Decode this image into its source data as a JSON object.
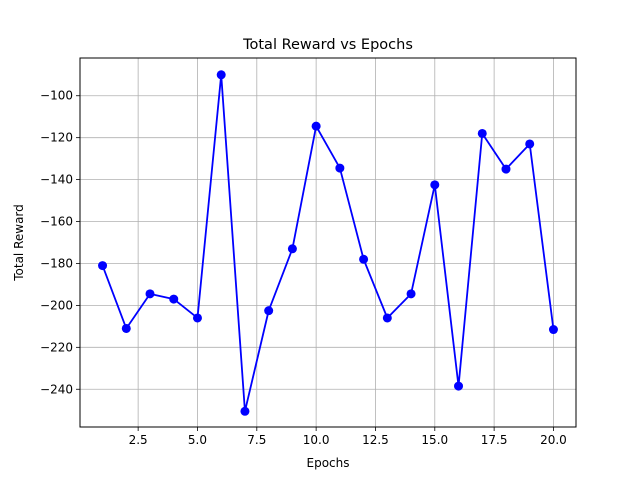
{
  "chart_data": {
    "type": "line",
    "title": "Total Reward vs Epochs",
    "xlabel": "Epochs",
    "ylabel": "Total Reward",
    "xlim": [
      0.05,
      20.95
    ],
    "ylim": [
      -258,
      -82
    ],
    "x_ticks": [
      2.5,
      5.0,
      7.5,
      10.0,
      12.5,
      15.0,
      17.5,
      20.0
    ],
    "x_tick_labels": [
      "2.5",
      "5.0",
      "7.5",
      "10.0",
      "12.5",
      "15.0",
      "17.5",
      "20.0"
    ],
    "y_ticks": [
      -240,
      -220,
      -200,
      -180,
      -160,
      -140,
      -120,
      -100
    ],
    "y_tick_labels": [
      "−240",
      "−220",
      "−200",
      "−180",
      "−160",
      "−140",
      "−120",
      "−100"
    ],
    "grid": true,
    "series": [
      {
        "color": "#0000ff",
        "marker": "circle",
        "x": [
          1,
          2,
          3,
          4,
          5,
          6,
          7,
          8,
          9,
          10,
          11,
          12,
          13,
          14,
          15,
          16,
          17,
          18,
          19,
          20
        ],
        "values": [
          -181,
          -211,
          -194.5,
          -197,
          -206,
          -90,
          -250.5,
          -202.5,
          -173,
          -114.5,
          -134.5,
          -178,
          -206,
          -194.5,
          -142.5,
          -238.5,
          -118,
          -135,
          -123,
          -211.5
        ]
      }
    ]
  }
}
